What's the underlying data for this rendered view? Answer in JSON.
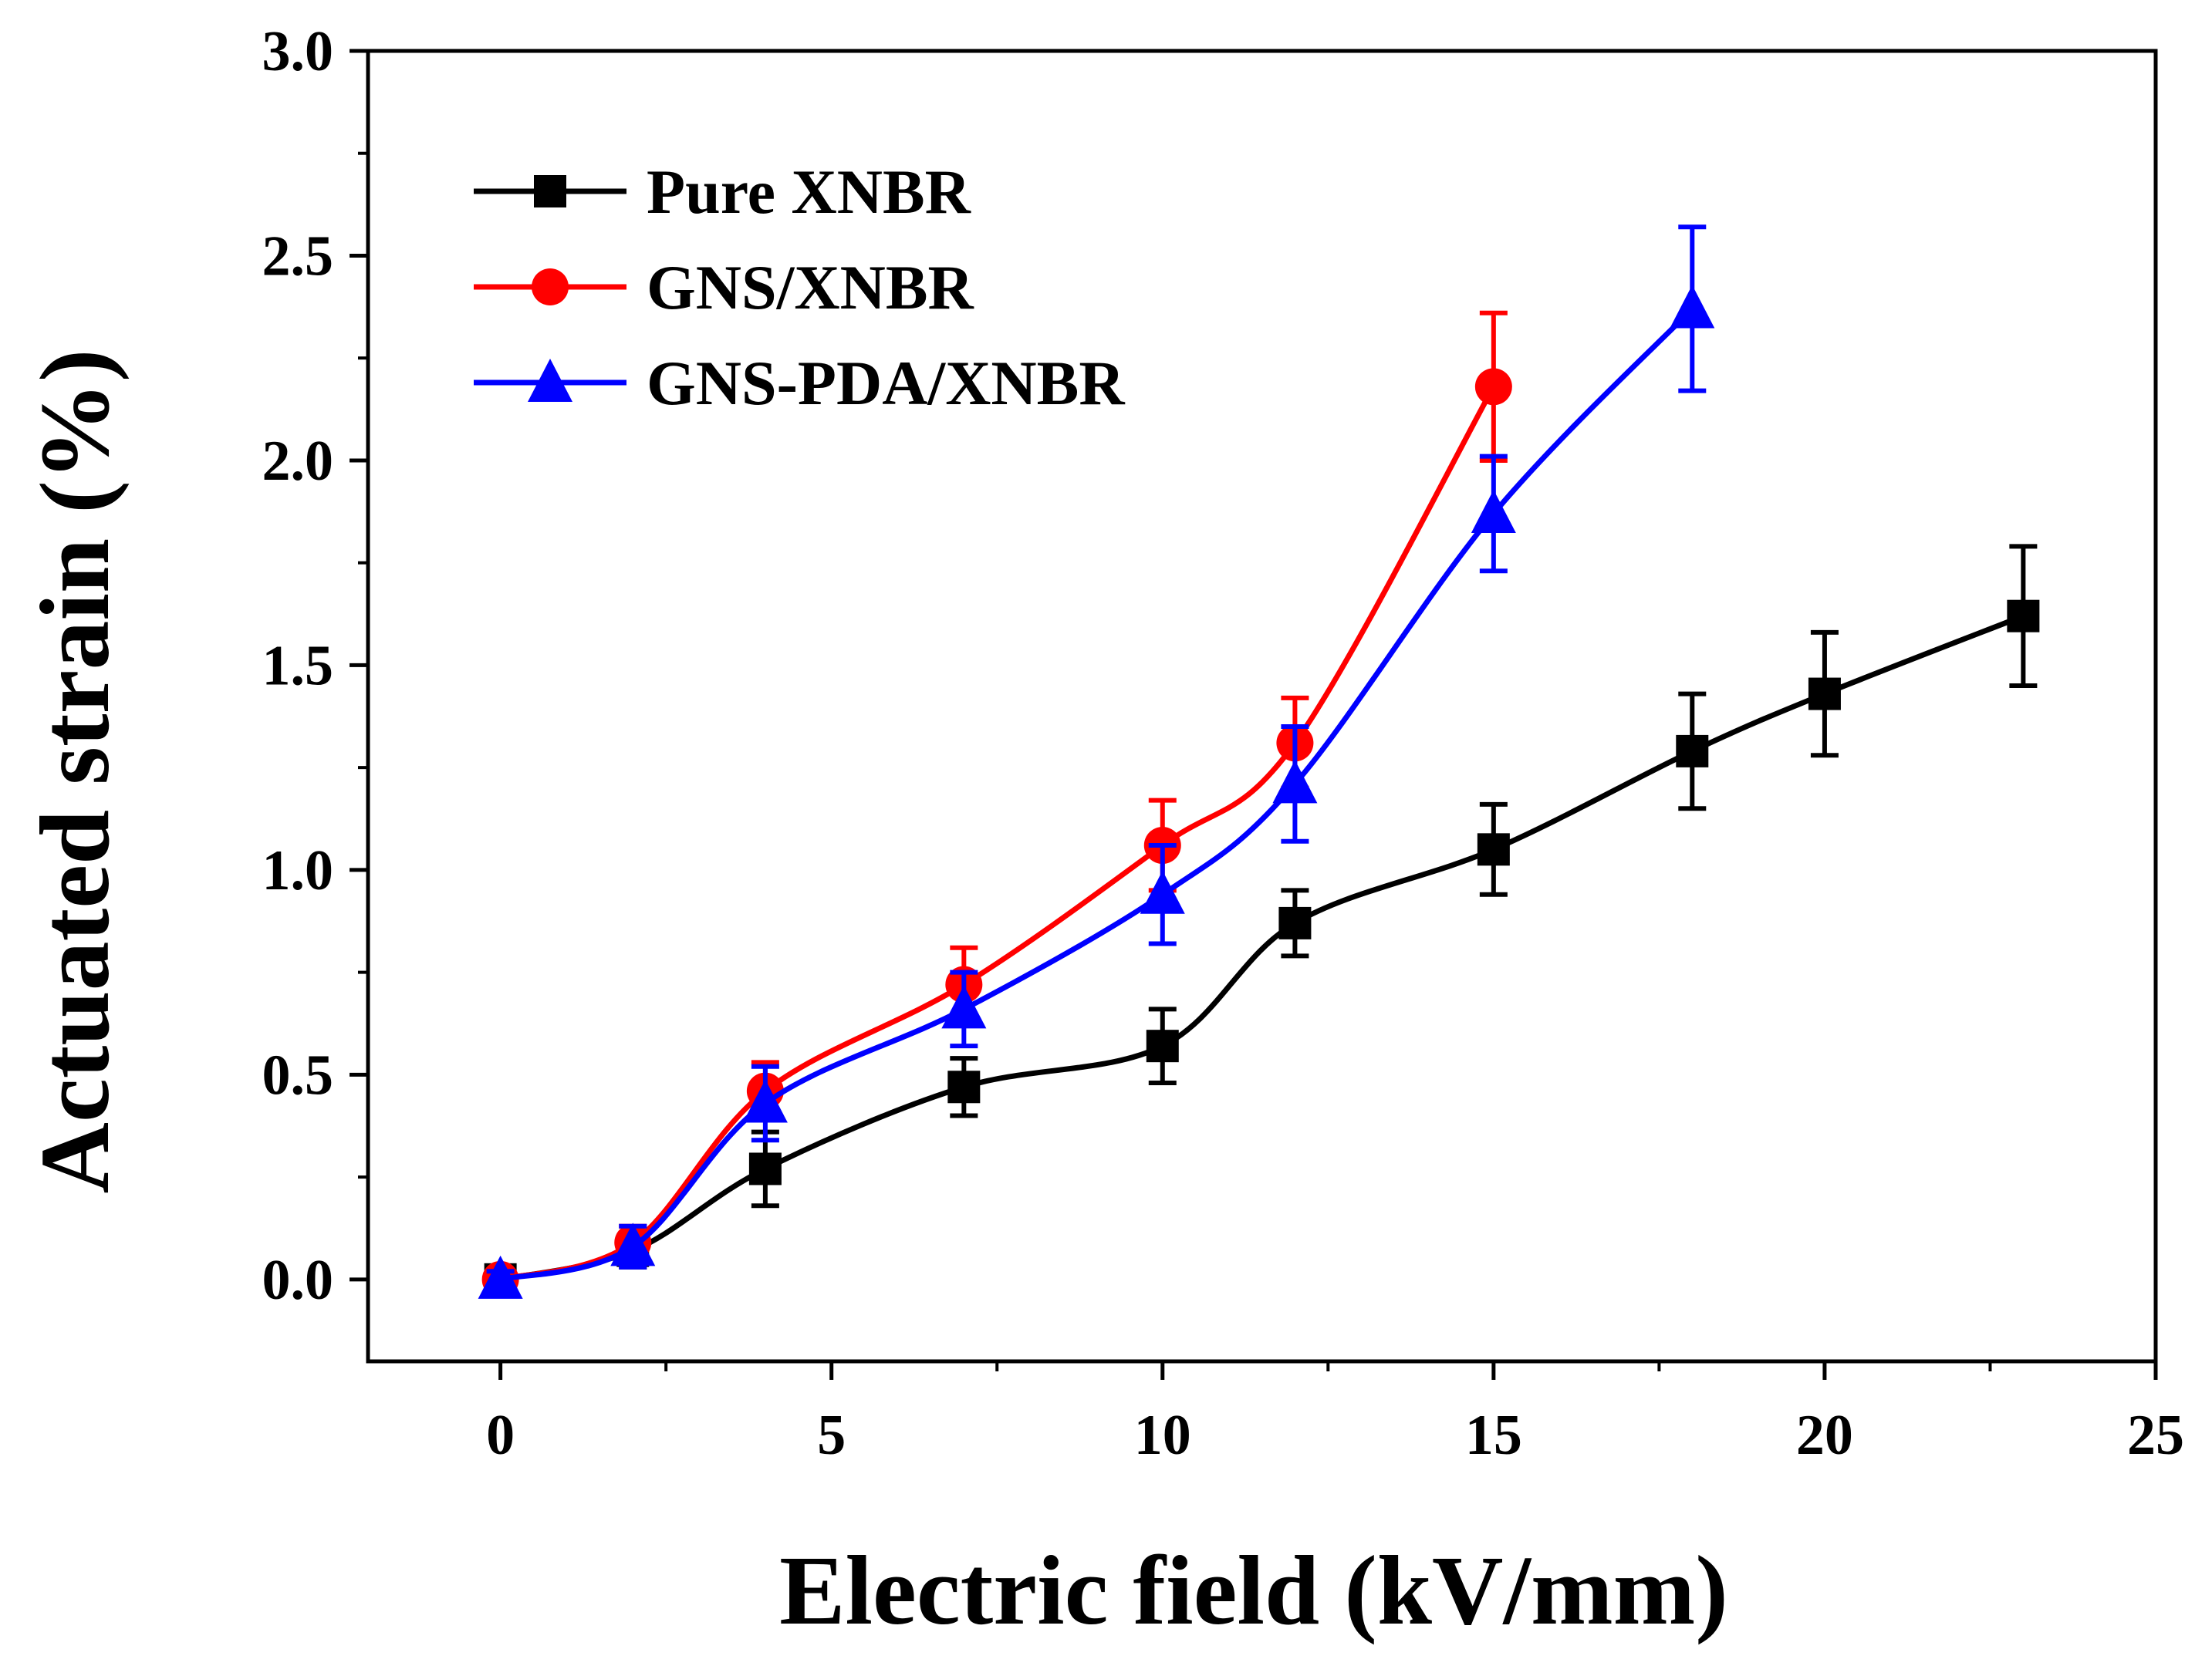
{
  "chart_data": {
    "type": "line",
    "title": "",
    "xlabel": "Electric field (kV/mm)",
    "ylabel": "Actuated strain (%)",
    "xlim": [
      -2,
      25
    ],
    "ylim": [
      -0.2,
      3.0
    ],
    "xticks": [
      0,
      5,
      10,
      15,
      20,
      25
    ],
    "yticks": [
      0.0,
      0.5,
      1.0,
      1.5,
      2.0,
      2.5,
      3.0
    ],
    "xtick_labels": [
      "0",
      "5",
      "10",
      "15",
      "20",
      "25"
    ],
    "ytick_labels": [
      "0.0",
      "0.5",
      "1.0",
      "1.5",
      "2.0",
      "2.5",
      "3.0"
    ],
    "legend_position": "top-left",
    "grid": false,
    "series": [
      {
        "name": "Pure XNBR",
        "color": "#000000",
        "marker": "square",
        "x": [
          0,
          2,
          4,
          7,
          10,
          12,
          15,
          18,
          20,
          23
        ],
        "y": [
          0.0,
          0.07,
          0.27,
          0.47,
          0.57,
          0.87,
          1.05,
          1.29,
          1.43,
          1.62
        ],
        "err": [
          0.02,
          0.04,
          0.09,
          0.07,
          0.09,
          0.08,
          0.11,
          0.14,
          0.15,
          0.17
        ]
      },
      {
        "name": "GNS/XNBR",
        "color": "#ff0000",
        "marker": "circle",
        "x": [
          0,
          2,
          4,
          7,
          10,
          12,
          15
        ],
        "y": [
          0.0,
          0.09,
          0.46,
          0.72,
          1.06,
          1.31,
          2.18
        ],
        "err": [
          0.02,
          0.04,
          0.07,
          0.09,
          0.11,
          0.11,
          0.18
        ]
      },
      {
        "name": "GNS-PDA/XNBR",
        "color": "#0000ff",
        "marker": "triangle",
        "x": [
          0,
          2,
          4,
          7,
          10,
          12,
          15,
          18
        ],
        "y": [
          0.0,
          0.08,
          0.43,
          0.66,
          0.94,
          1.21,
          1.87,
          2.37
        ],
        "err": [
          0.02,
          0.05,
          0.09,
          0.09,
          0.12,
          0.14,
          0.14,
          0.2
        ]
      }
    ]
  }
}
